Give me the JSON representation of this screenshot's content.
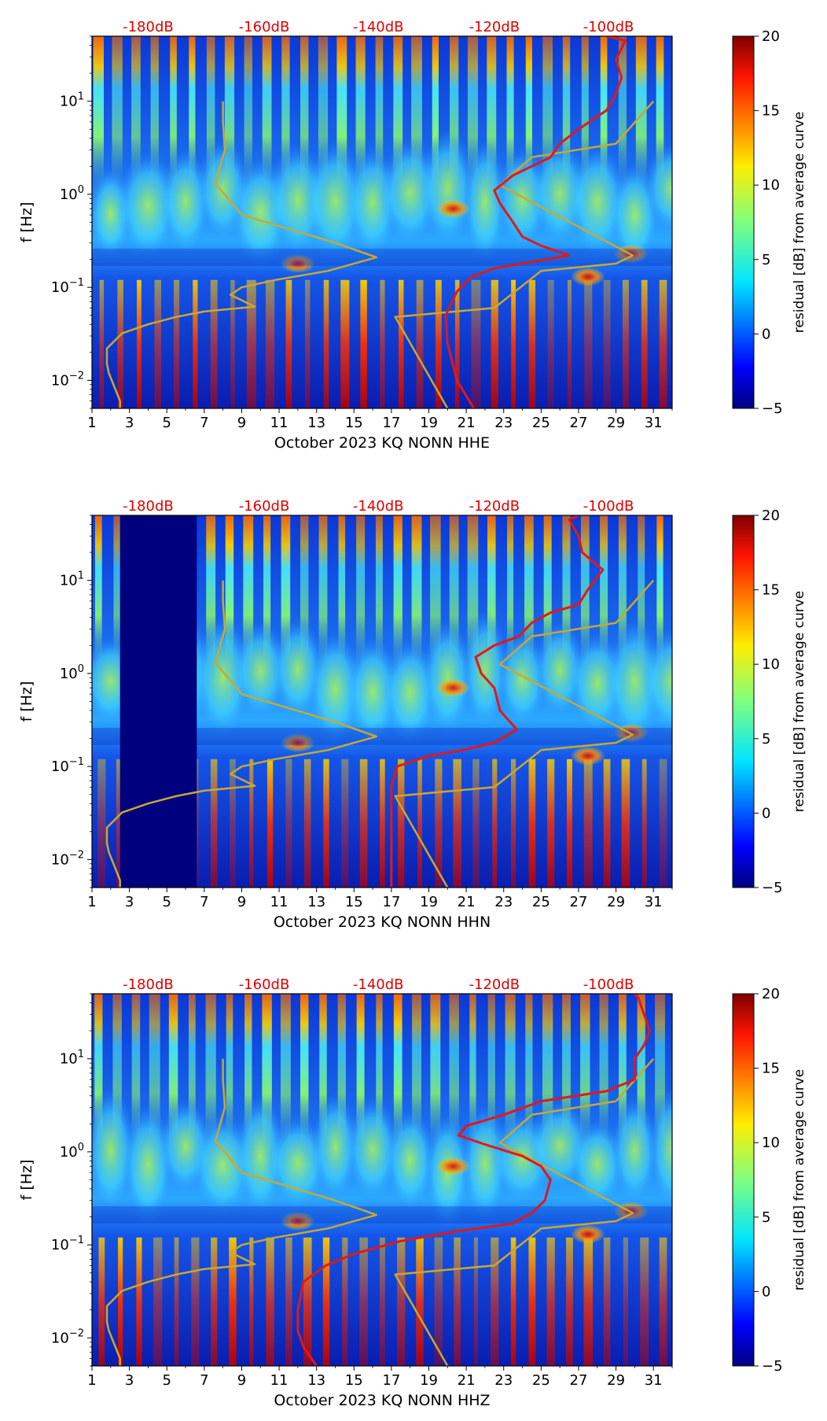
{
  "chart_data": [
    {
      "type": "heatmap",
      "title": "",
      "xlabel": "October 2023 KQ NONN  HHE",
      "ylabel": "f [Hz]",
      "x_ticks": [
        "1",
        "3",
        "5",
        "7",
        "9",
        "11",
        "13",
        "15",
        "17",
        "19",
        "21",
        "23",
        "25",
        "27",
        "29",
        "31"
      ],
      "x_range": [
        1,
        32
      ],
      "y_ticks": [
        {
          "value": 0.01,
          "base": "10",
          "exp": "−2"
        },
        {
          "value": 0.1,
          "base": "10",
          "exp": "−1"
        },
        {
          "value": 1,
          "base": "10",
          "exp": "0"
        },
        {
          "value": 10,
          "base": "10",
          "exp": "1"
        }
      ],
      "y_range": [
        0.005,
        50
      ],
      "y_scale": "log",
      "top_labels": [
        {
          "x": 4.0,
          "text": "-180dB"
        },
        {
          "x": 10.2,
          "text": "-160dB"
        },
        {
          "x": 16.3,
          "text": "-140dB"
        },
        {
          "x": 22.5,
          "text": "-120dB"
        },
        {
          "x": 28.6,
          "text": "-100dB"
        }
      ],
      "colorbar": {
        "label": "residual [dB] from average curve",
        "range": [
          -5,
          20
        ],
        "ticks": [
          "−5",
          "0",
          "5",
          "10",
          "15",
          "20"
        ]
      },
      "series": [
        {
          "name": "reference-noise-model",
          "color": "#c8a832",
          "points": [
            [
              2.5,
              0.005
            ],
            [
              2.5,
              0.006
            ],
            [
              1.9,
              0.012
            ],
            [
              1.8,
              0.015
            ],
            [
              1.8,
              0.022
            ],
            [
              2.6,
              0.032
            ],
            [
              4.0,
              0.04
            ],
            [
              5.5,
              0.048
            ],
            [
              7.0,
              0.055
            ],
            [
              9.7,
              0.062
            ],
            [
              8.4,
              0.083
            ],
            [
              9.0,
              0.1
            ],
            [
              10.8,
              0.12
            ],
            [
              13.6,
              0.15
            ],
            [
              16.2,
              0.21
            ],
            [
              14.0,
              0.3
            ],
            [
              9.0,
              0.6
            ],
            [
              7.6,
              1.3
            ],
            [
              8.1,
              3.0
            ],
            [
              8.0,
              6.0
            ],
            [
              8.0,
              10.0
            ]
          ]
        },
        {
          "name": "reference-noise-model-2",
          "color": "#c8a832",
          "points": [
            [
              20.0,
              0.005
            ],
            [
              17.2,
              0.048
            ],
            [
              22.5,
              0.06
            ],
            [
              25.0,
              0.15
            ],
            [
              29.0,
              0.18
            ],
            [
              29.9,
              0.22
            ],
            [
              22.8,
              1.25
            ],
            [
              24.5,
              2.5
            ],
            [
              29.0,
              3.5
            ],
            [
              31.0,
              10.0
            ]
          ]
        },
        {
          "name": "station-median-curve",
          "color": "#e21818",
          "points": [
            [
              21.4,
              0.005
            ],
            [
              20.5,
              0.01
            ],
            [
              20.0,
              0.025
            ],
            [
              19.9,
              0.05
            ],
            [
              20.5,
              0.09
            ],
            [
              21.3,
              0.13
            ],
            [
              22.5,
              0.16
            ],
            [
              24.0,
              0.18
            ],
            [
              26.5,
              0.22
            ],
            [
              25.0,
              0.28
            ],
            [
              24.0,
              0.35
            ],
            [
              23.5,
              0.5
            ],
            [
              22.8,
              0.8
            ],
            [
              22.5,
              1.1
            ],
            [
              23.5,
              1.6
            ],
            [
              24.5,
              2.0
            ],
            [
              25.5,
              2.5
            ],
            [
              26.0,
              3.5
            ],
            [
              27.0,
              5.0
            ],
            [
              28.5,
              8.0
            ],
            [
              29.0,
              12.0
            ],
            [
              29.3,
              18.0
            ],
            [
              29.0,
              28.0
            ],
            [
              29.5,
              45.0
            ],
            [
              28.5,
              50.0
            ]
          ]
        }
      ]
    },
    {
      "type": "heatmap",
      "title": "",
      "xlabel": "October 2023 KQ NONN  HHN",
      "ylabel": "f [Hz]",
      "x_ticks": [
        "1",
        "3",
        "5",
        "7",
        "9",
        "11",
        "13",
        "15",
        "17",
        "19",
        "21",
        "23",
        "25",
        "27",
        "29",
        "31"
      ],
      "x_range": [
        1,
        32
      ],
      "y_ticks": [
        {
          "value": 0.01,
          "base": "10",
          "exp": "−2"
        },
        {
          "value": 0.1,
          "base": "10",
          "exp": "−1"
        },
        {
          "value": 1,
          "base": "10",
          "exp": "0"
        },
        {
          "value": 10,
          "base": "10",
          "exp": "1"
        }
      ],
      "y_range": [
        0.005,
        50
      ],
      "y_scale": "log",
      "top_labels": [
        {
          "x": 4.0,
          "text": "-180dB"
        },
        {
          "x": 10.2,
          "text": "-160dB"
        },
        {
          "x": 16.3,
          "text": "-140dB"
        },
        {
          "x": 22.5,
          "text": "-120dB"
        },
        {
          "x": 28.6,
          "text": "-100dB"
        }
      ],
      "colorbar": {
        "label": "residual [dB] from average curve",
        "range": [
          -5,
          20
        ],
        "ticks": [
          "−5",
          "0",
          "5",
          "10",
          "15",
          "20"
        ]
      },
      "data_gap_days": [
        2.5,
        6.6
      ],
      "series": [
        {
          "name": "reference-noise-model",
          "color": "#c8a832",
          "points": [
            [
              2.5,
              0.005
            ],
            [
              2.5,
              0.006
            ],
            [
              1.9,
              0.012
            ],
            [
              1.8,
              0.015
            ],
            [
              1.8,
              0.022
            ],
            [
              2.6,
              0.032
            ],
            [
              4.0,
              0.04
            ],
            [
              5.5,
              0.048
            ],
            [
              7.0,
              0.055
            ],
            [
              9.7,
              0.062
            ],
            [
              8.4,
              0.083
            ],
            [
              9.0,
              0.1
            ],
            [
              10.8,
              0.12
            ],
            [
              13.6,
              0.15
            ],
            [
              16.2,
              0.21
            ],
            [
              14.0,
              0.3
            ],
            [
              9.0,
              0.6
            ],
            [
              7.6,
              1.3
            ],
            [
              8.1,
              3.0
            ],
            [
              8.0,
              6.0
            ],
            [
              8.0,
              10.0
            ]
          ]
        },
        {
          "name": "reference-noise-model-2",
          "color": "#c8a832",
          "points": [
            [
              20.0,
              0.005
            ],
            [
              17.2,
              0.048
            ],
            [
              22.5,
              0.06
            ],
            [
              25.0,
              0.15
            ],
            [
              29.0,
              0.18
            ],
            [
              29.9,
              0.22
            ],
            [
              22.8,
              1.25
            ],
            [
              24.5,
              2.5
            ],
            [
              29.0,
              3.5
            ],
            [
              31.0,
              10.0
            ]
          ]
        },
        {
          "name": "station-median-curve",
          "color": "#e21818",
          "points": [
            [
              17.0,
              0.005
            ],
            [
              17.0,
              0.02
            ],
            [
              17.0,
              0.06
            ],
            [
              17.3,
              0.1
            ],
            [
              19.0,
              0.13
            ],
            [
              20.8,
              0.15
            ],
            [
              22.5,
              0.18
            ],
            [
              23.7,
              0.25
            ],
            [
              22.8,
              0.4
            ],
            [
              22.5,
              0.7
            ],
            [
              21.8,
              1.0
            ],
            [
              21.5,
              1.5
            ],
            [
              22.5,
              2.0
            ],
            [
              23.8,
              2.5
            ],
            [
              24.5,
              3.5
            ],
            [
              25.5,
              4.5
            ],
            [
              27.0,
              5.5
            ],
            [
              27.5,
              8.0
            ],
            [
              28.3,
              13.0
            ],
            [
              27.2,
              20.0
            ],
            [
              27.0,
              30.0
            ],
            [
              26.5,
              45.0
            ],
            [
              27.0,
              50.0
            ]
          ]
        }
      ]
    },
    {
      "type": "heatmap",
      "title": "",
      "xlabel": "October 2023 KQ NONN  HHZ",
      "ylabel": "f [Hz]",
      "x_ticks": [
        "1",
        "3",
        "5",
        "7",
        "9",
        "11",
        "13",
        "15",
        "17",
        "19",
        "21",
        "23",
        "25",
        "27",
        "29",
        "31"
      ],
      "x_range": [
        1,
        32
      ],
      "y_ticks": [
        {
          "value": 0.01,
          "base": "10",
          "exp": "−2"
        },
        {
          "value": 0.1,
          "base": "10",
          "exp": "−1"
        },
        {
          "value": 1,
          "base": "10",
          "exp": "0"
        },
        {
          "value": 10,
          "base": "10",
          "exp": "1"
        }
      ],
      "y_range": [
        0.005,
        50
      ],
      "y_scale": "log",
      "top_labels": [
        {
          "x": 4.0,
          "text": "-180dB"
        },
        {
          "x": 10.2,
          "text": "-160dB"
        },
        {
          "x": 16.3,
          "text": "-140dB"
        },
        {
          "x": 22.5,
          "text": "-120dB"
        },
        {
          "x": 28.6,
          "text": "-100dB"
        }
      ],
      "colorbar": {
        "label": "residual [dB] from average curve",
        "range": [
          -5,
          20
        ],
        "ticks": [
          "−5",
          "0",
          "5",
          "10",
          "15",
          "20"
        ]
      },
      "series": [
        {
          "name": "reference-noise-model",
          "color": "#c8a832",
          "points": [
            [
              2.5,
              0.005
            ],
            [
              2.5,
              0.006
            ],
            [
              1.9,
              0.012
            ],
            [
              1.8,
              0.015
            ],
            [
              1.8,
              0.022
            ],
            [
              2.6,
              0.032
            ],
            [
              4.0,
              0.04
            ],
            [
              5.5,
              0.048
            ],
            [
              7.0,
              0.055
            ],
            [
              9.7,
              0.062
            ],
            [
              8.4,
              0.083
            ],
            [
              9.0,
              0.1
            ],
            [
              10.8,
              0.12
            ],
            [
              13.6,
              0.15
            ],
            [
              16.2,
              0.21
            ],
            [
              14.0,
              0.3
            ],
            [
              9.0,
              0.6
            ],
            [
              7.6,
              1.3
            ],
            [
              8.1,
              3.0
            ],
            [
              8.0,
              6.0
            ],
            [
              8.0,
              10.0
            ]
          ]
        },
        {
          "name": "reference-noise-model-2",
          "color": "#c8a832",
          "points": [
            [
              20.0,
              0.005
            ],
            [
              17.2,
              0.048
            ],
            [
              22.5,
              0.06
            ],
            [
              25.0,
              0.15
            ],
            [
              29.0,
              0.18
            ],
            [
              29.9,
              0.22
            ],
            [
              22.8,
              1.25
            ],
            [
              24.5,
              2.5
            ],
            [
              29.0,
              3.5
            ],
            [
              31.0,
              10.0
            ]
          ]
        },
        {
          "name": "station-median-curve",
          "color": "#e21818",
          "points": [
            [
              13.0,
              0.005
            ],
            [
              12.3,
              0.008
            ],
            [
              12.0,
              0.012
            ],
            [
              12.0,
              0.02
            ],
            [
              12.3,
              0.04
            ],
            [
              13.5,
              0.06
            ],
            [
              15.0,
              0.08
            ],
            [
              17.5,
              0.11
            ],
            [
              20.5,
              0.14
            ],
            [
              23.5,
              0.17
            ],
            [
              24.5,
              0.22
            ],
            [
              25.2,
              0.3
            ],
            [
              25.5,
              0.5
            ],
            [
              25.0,
              0.7
            ],
            [
              24.0,
              0.9
            ],
            [
              22.0,
              1.2
            ],
            [
              20.6,
              1.5
            ],
            [
              21.0,
              1.9
            ],
            [
              23.0,
              2.5
            ],
            [
              25.0,
              3.5
            ],
            [
              28.5,
              4.5
            ],
            [
              30.0,
              6.0
            ],
            [
              30.0,
              10.0
            ],
            [
              30.5,
              14.0
            ],
            [
              30.8,
              20.0
            ],
            [
              30.5,
              30.0
            ],
            [
              30.2,
              45.0
            ],
            [
              30.0,
              50.0
            ]
          ]
        }
      ]
    }
  ]
}
